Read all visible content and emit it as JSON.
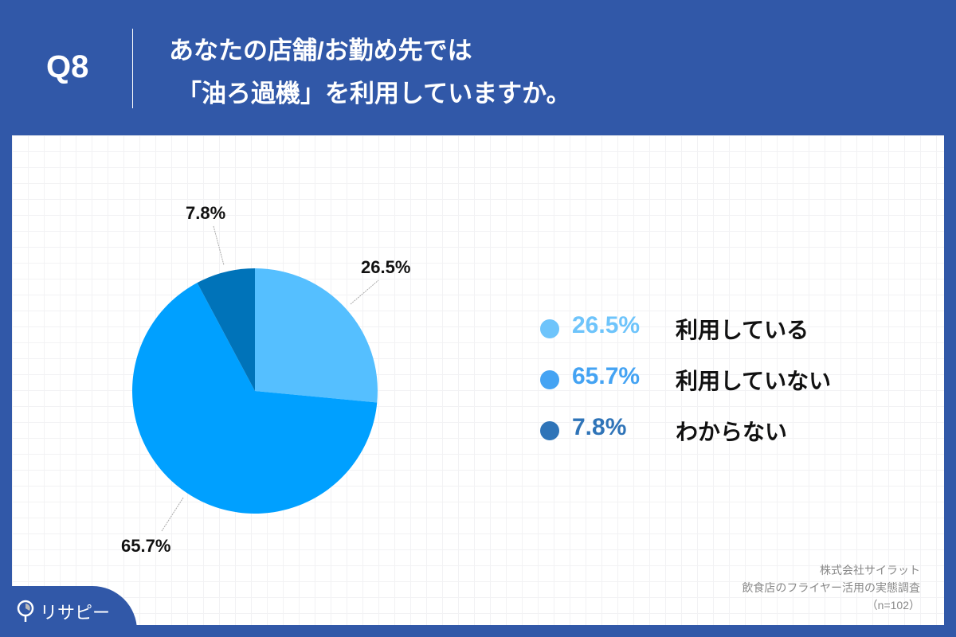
{
  "header": {
    "question_number": "Q8",
    "title_line1": "あなたの店舗/お勤め先では",
    "title_line2": "「油ろ過機」を利用していますか。"
  },
  "colors": {
    "background": "#3158a8",
    "slice_using": "#55bfff",
    "slice_not_using": "#00a0ff",
    "slice_unknown": "#0073b9",
    "legend_pct_using": "#6ec4fb",
    "legend_pct_not_using": "#44a3f3",
    "legend_pct_unknown": "#2f74b8"
  },
  "chart_data": {
    "type": "pie",
    "title": "あなたの店舗/お勤め先では「油ろ過機」を利用していますか。",
    "categories": [
      "利用している",
      "利用していない",
      "わからない"
    ],
    "values": [
      26.5,
      65.7,
      7.8
    ],
    "unit": "%",
    "start_angle": "12 o'clock, clockwise",
    "data_labels": [
      "26.5%",
      "65.7%",
      "7.8%"
    ],
    "legend_position": "right",
    "n": 102
  },
  "pie_labels": {
    "using": "26.5%",
    "not_using": "65.7%",
    "unknown": "7.8%"
  },
  "legend": [
    {
      "pct": "26.5%",
      "label": "利用している"
    },
    {
      "pct": "65.7%",
      "label": "利用していない"
    },
    {
      "pct": "7.8%",
      "label": "わからない"
    }
  ],
  "source": {
    "company": "株式会社サイラット",
    "survey": "飲食店のフライヤー活用の実態調査",
    "sample": "（n=102）"
  },
  "logo": {
    "text": "リサピー"
  }
}
